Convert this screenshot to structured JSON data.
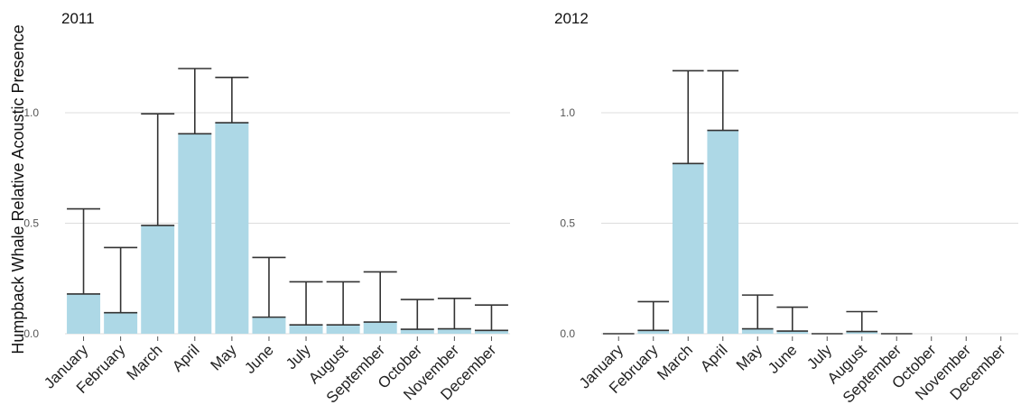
{
  "chart_data": {
    "type": "bar",
    "ylabel": "Humpback Whale Relative Acoustic Presence",
    "y_ticks": [
      "0.0",
      "0.5",
      "1.0"
    ],
    "grid": true,
    "legend": "none",
    "bar_color": "#add8e6",
    "panels": [
      {
        "title": "2011",
        "categories": [
          "January",
          "February",
          "March",
          "April",
          "May",
          "June",
          "July",
          "August",
          "September",
          "October",
          "November",
          "December"
        ],
        "values": [
          0.18,
          0.095,
          0.49,
          0.905,
          0.955,
          0.075,
          0.04,
          0.04,
          0.053,
          0.02,
          0.022,
          0.015
        ],
        "error_upper": [
          0.565,
          0.39,
          0.995,
          1.2,
          1.16,
          0.345,
          0.235,
          0.235,
          0.28,
          0.155,
          0.16,
          0.13
        ],
        "ylim": [
          0,
          1.25
        ]
      },
      {
        "title": "2012",
        "categories": [
          "January",
          "February",
          "March",
          "April",
          "May",
          "June",
          "July",
          "August",
          "September",
          "October",
          "November",
          "December"
        ],
        "values": [
          0.0,
          0.015,
          0.77,
          0.92,
          0.022,
          0.012,
          0.0,
          0.01,
          0.0,
          null,
          null,
          null
        ],
        "error_upper": [
          0.0,
          0.145,
          1.19,
          1.19,
          0.175,
          0.12,
          0.0,
          0.1,
          0.0,
          null,
          null,
          null
        ],
        "ylim": [
          0,
          1.25
        ]
      }
    ]
  }
}
